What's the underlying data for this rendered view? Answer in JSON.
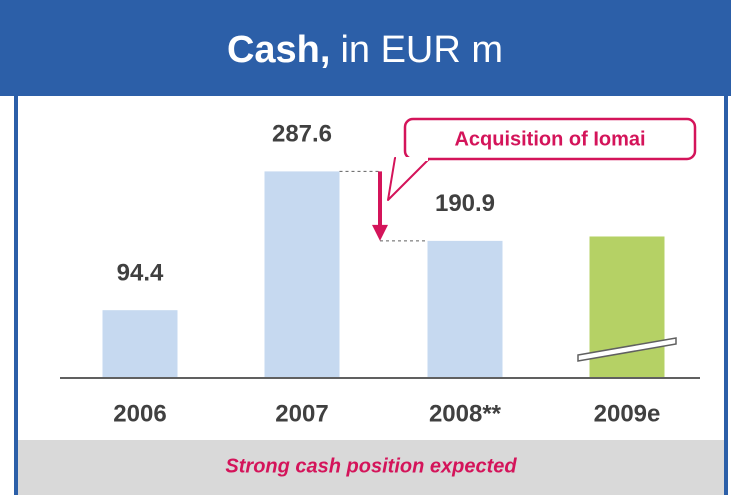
{
  "chart_data": {
    "type": "bar",
    "title": "Cash,",
    "subtitle": "in EUR m",
    "categories": [
      "2006",
      "2007",
      "2008**",
      "2009e"
    ],
    "values": [
      94.4,
      287.6,
      190.9,
      197
    ],
    "value_labels": [
      "94.4",
      "287.6",
      "190.9",
      null
    ],
    "colors": [
      "#c6d9f0",
      "#c6d9f0",
      "#c6d9f0",
      "#b5d165"
    ],
    "ylim": [
      0,
      387
    ],
    "annotation": "Acquisition of Iomai",
    "footer": "Strong cash position expected"
  }
}
